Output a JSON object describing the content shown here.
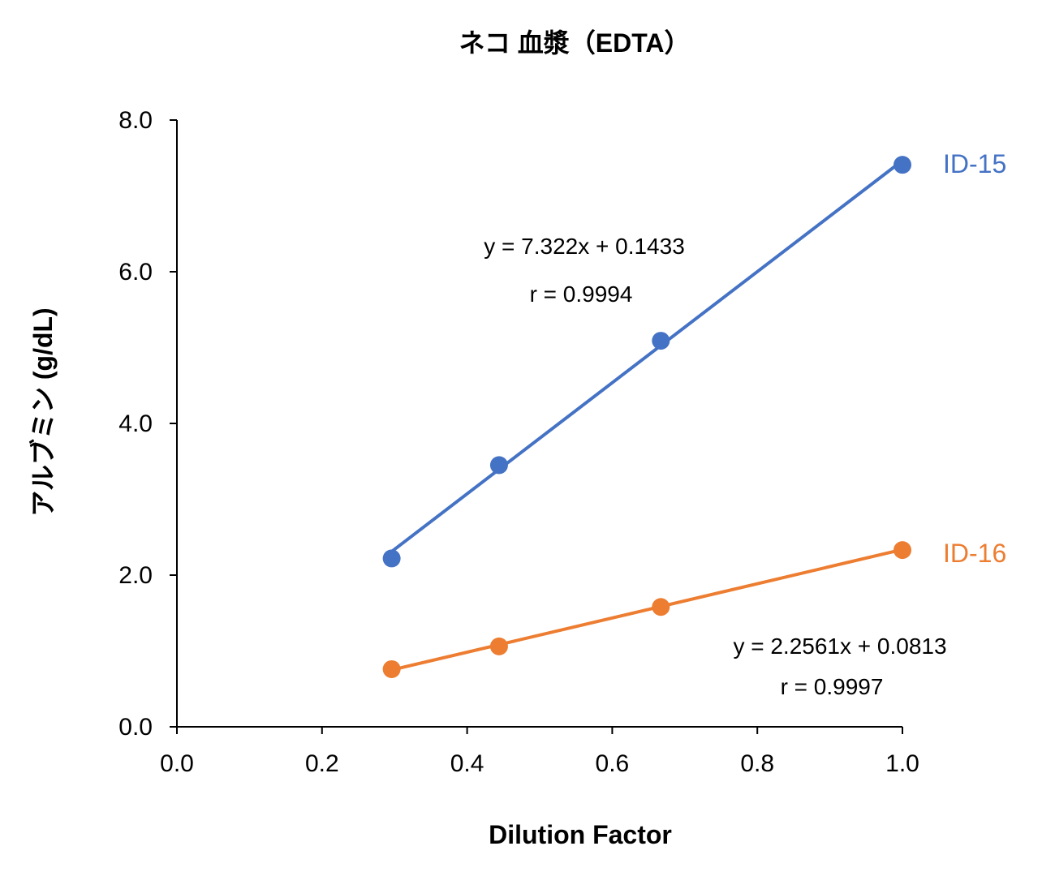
{
  "chart_data": {
    "type": "scatter",
    "title": "ネコ 血漿（EDTA）",
    "xlabel": "Dilution Factor",
    "ylabel": "アルブミン (g/dL)",
    "xlim": [
      0,
      1.0
    ],
    "ylim": [
      0,
      8.0
    ],
    "xticks": [
      "0.0",
      "0.2",
      "0.4",
      "0.6",
      "0.8",
      "1.0"
    ],
    "yticks": [
      "0.0",
      "2.0",
      "4.0",
      "6.0",
      "8.0"
    ],
    "grid": false,
    "series": [
      {
        "name": "ID-15",
        "color": "#4472C4",
        "x": [
          0.296,
          0.444,
          0.667,
          1.0
        ],
        "y": [
          2.22,
          3.45,
          5.09,
          7.41
        ],
        "trendline": {
          "slope": 7.322,
          "intercept": 0.1433
        },
        "equation": "y = 7.322x + 0.1433",
        "r": "r = 0.9994"
      },
      {
        "name": "ID-16",
        "color": "#ED7D31",
        "x": [
          0.296,
          0.444,
          0.667,
          1.0
        ],
        "y": [
          0.76,
          1.06,
          1.58,
          2.33
        ],
        "trendline": {
          "slope": 2.2561,
          "intercept": 0.0813
        },
        "equation": "y = 2.2561x + 0.0813",
        "r": "r = 0.9997"
      }
    ]
  }
}
